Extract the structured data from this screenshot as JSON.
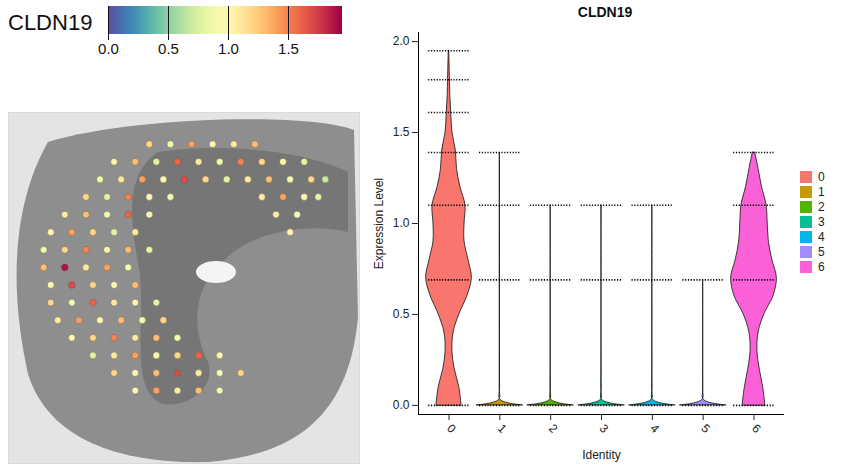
{
  "chart_data": [
    {
      "type": "spatial",
      "title": "CLDN19",
      "xlim": [
        0,
        100
      ],
      "ylim": [
        0,
        100
      ],
      "tick_labels": false,
      "colorbar": {
        "range": [
          0,
          1.95
        ],
        "ticks": [
          {
            "value": 0,
            "label": "0.0"
          },
          0.5,
          {
            "value": 1,
            "label": "1.0"
          },
          1.5
        ]
      },
      "spots": [
        [
          40,
          9,
          1.2
        ],
        [
          46,
          9,
          0.9
        ],
        [
          52,
          9,
          1.4
        ],
        [
          58,
          9,
          1.0
        ],
        [
          64,
          9,
          1.1
        ],
        [
          70,
          9,
          1.3
        ],
        [
          30,
          14,
          1.0
        ],
        [
          36,
          14,
          1.3
        ],
        [
          42,
          14,
          0.8
        ],
        [
          48,
          14,
          1.6
        ],
        [
          54,
          14,
          1.1
        ],
        [
          60,
          14,
          0.9
        ],
        [
          66,
          14,
          1.5
        ],
        [
          72,
          14,
          1.2
        ],
        [
          78,
          14,
          1.0
        ],
        [
          84,
          14,
          0.8
        ],
        [
          26,
          19,
          0.9
        ],
        [
          32,
          19,
          1.1
        ],
        [
          38,
          19,
          1.4
        ],
        [
          44,
          19,
          1.0
        ],
        [
          50,
          19,
          1.7
        ],
        [
          56,
          19,
          1.2
        ],
        [
          62,
          19,
          0.8
        ],
        [
          68,
          19,
          1.1
        ],
        [
          74,
          19,
          1.3
        ],
        [
          80,
          19,
          0.9
        ],
        [
          86,
          19,
          1.2
        ],
        [
          90,
          19,
          0.7
        ],
        [
          22,
          24,
          1.2
        ],
        [
          28,
          24,
          0.8
        ],
        [
          34,
          24,
          1.5
        ],
        [
          40,
          24,
          1.0
        ],
        [
          46,
          24,
          0.9
        ],
        [
          72,
          24,
          1.1
        ],
        [
          78,
          24,
          1.4
        ],
        [
          84,
          24,
          1.0
        ],
        [
          88,
          24,
          0.8
        ],
        [
          16,
          29,
          1.1
        ],
        [
          22,
          29,
          1.3
        ],
        [
          28,
          29,
          0.9
        ],
        [
          34,
          29,
          1.6
        ],
        [
          40,
          29,
          1.0
        ],
        [
          76,
          29,
          1.1
        ],
        [
          82,
          29,
          0.9
        ],
        [
          12,
          34,
          1.0
        ],
        [
          18,
          34,
          1.4
        ],
        [
          24,
          34,
          1.2
        ],
        [
          30,
          34,
          0.8
        ],
        [
          36,
          34,
          1.1
        ],
        [
          80,
          34,
          1.0
        ],
        [
          10,
          39,
          0.9
        ],
        [
          16,
          39,
          1.2
        ],
        [
          22,
          39,
          1.5
        ],
        [
          28,
          39,
          1.0
        ],
        [
          34,
          39,
          1.3
        ],
        [
          40,
          39,
          0.8
        ],
        [
          10,
          44,
          1.3
        ],
        [
          16,
          44,
          1.9
        ],
        [
          22,
          44,
          1.1
        ],
        [
          28,
          44,
          1.4
        ],
        [
          34,
          44,
          0.9
        ],
        [
          12,
          49,
          1.0
        ],
        [
          18,
          49,
          1.7
        ],
        [
          24,
          49,
          1.2
        ],
        [
          30,
          49,
          1.0
        ],
        [
          36,
          49,
          1.3
        ],
        [
          12,
          54,
          1.2
        ],
        [
          18,
          54,
          0.9
        ],
        [
          24,
          54,
          1.6
        ],
        [
          30,
          54,
          1.1
        ],
        [
          36,
          54,
          1.0
        ],
        [
          42,
          54,
          0.8
        ],
        [
          14,
          59,
          1.1
        ],
        [
          20,
          59,
          1.4
        ],
        [
          26,
          59,
          1.0
        ],
        [
          32,
          59,
          1.3
        ],
        [
          38,
          59,
          0.9
        ],
        [
          44,
          59,
          1.2
        ],
        [
          18,
          64,
          1.0
        ],
        [
          24,
          64,
          1.2
        ],
        [
          30,
          64,
          1.5
        ],
        [
          36,
          64,
          1.1
        ],
        [
          42,
          64,
          1.3
        ],
        [
          48,
          64,
          0.9
        ],
        [
          24,
          69,
          0.8
        ],
        [
          30,
          69,
          1.1
        ],
        [
          36,
          69,
          1.4
        ],
        [
          42,
          69,
          1.0
        ],
        [
          48,
          69,
          1.2
        ],
        [
          54,
          69,
          1.6
        ],
        [
          60,
          69,
          1.0
        ],
        [
          30,
          74,
          1.2
        ],
        [
          36,
          74,
          1.0
        ],
        [
          42,
          74,
          1.3
        ],
        [
          48,
          74,
          1.7
        ],
        [
          54,
          74,
          1.1
        ],
        [
          60,
          74,
          0.9
        ],
        [
          66,
          74,
          1.2
        ],
        [
          36,
          79,
          1.0
        ],
        [
          42,
          79,
          1.4
        ],
        [
          48,
          79,
          1.1
        ],
        [
          54,
          79,
          1.3
        ],
        [
          60,
          79,
          0.9
        ]
      ]
    },
    {
      "type": "violin",
      "title": "CLDN19",
      "x_label": "Identity",
      "y_label": "Expression Level",
      "categories": [
        "0",
        "1",
        "2",
        "3",
        "4",
        "5",
        "6"
      ],
      "ylim": [
        -0.05,
        2.05
      ],
      "yticks": [
        {
          "value": 0,
          "label": "0.0"
        },
        0.5,
        {
          "value": 1,
          "label": "1.0"
        },
        1.5,
        {
          "value": 2,
          "label": "2.0"
        }
      ],
      "legend": "right",
      "series": [
        {
          "name": "0",
          "color": "#F8766D",
          "density_y": [
            0,
            0.1,
            0.2,
            0.3,
            0.4,
            0.5,
            0.6,
            0.7,
            0.8,
            0.9,
            1.0,
            1.1,
            1.2,
            1.3,
            1.4,
            1.5,
            1.6,
            1.7,
            1.8,
            1.95
          ],
          "density": [
            0.55,
            0.45,
            0.25,
            0.15,
            0.2,
            0.45,
            0.8,
            1.0,
            0.85,
            0.68,
            0.68,
            0.72,
            0.5,
            0.35,
            0.3,
            0.15,
            0.1,
            0.06,
            0.04,
            0.01
          ],
          "levels": [
            0,
            0.69,
            1.1,
            1.39,
            1.61,
            1.79,
            1.95
          ]
        },
        {
          "name": "1",
          "color": "#C49A00",
          "density_y": [
            0,
            0.03,
            0.1,
            1.39
          ],
          "density": [
            1,
            0.03,
            0.01,
            0.005
          ],
          "levels": [
            0,
            0.69,
            1.1,
            1.39
          ]
        },
        {
          "name": "2",
          "color": "#53B400",
          "density_y": [
            0,
            0.03,
            0.1,
            1.1
          ],
          "density": [
            1,
            0.03,
            0.01,
            0.005
          ],
          "levels": [
            0,
            0.69,
            1.1
          ]
        },
        {
          "name": "3",
          "color": "#00C094",
          "density_y": [
            0,
            0.03,
            0.1,
            1.1
          ],
          "density": [
            1,
            0.03,
            0.01,
            0.005
          ],
          "levels": [
            0,
            0.69,
            1.1
          ]
        },
        {
          "name": "4",
          "color": "#00B6EB",
          "density_y": [
            0,
            0.03,
            0.1,
            1.1
          ],
          "density": [
            1,
            0.03,
            0.01,
            0.005
          ],
          "levels": [
            0,
            0.69,
            1.1
          ]
        },
        {
          "name": "5",
          "color": "#A58AFF",
          "density_y": [
            0,
            0.03,
            0.1,
            0.69
          ],
          "density": [
            1,
            0.03,
            0.01,
            0.005
          ],
          "levels": [
            0,
            0.69
          ]
        },
        {
          "name": "6",
          "color": "#FB61D7",
          "density_y": [
            0,
            0.1,
            0.2,
            0.3,
            0.4,
            0.5,
            0.6,
            0.7,
            0.8,
            0.9,
            1.0,
            1.1,
            1.2,
            1.3,
            1.39
          ],
          "density": [
            0.5,
            0.4,
            0.25,
            0.15,
            0.2,
            0.45,
            0.85,
            1.0,
            0.8,
            0.65,
            0.6,
            0.55,
            0.35,
            0.2,
            0.05
          ],
          "levels": [
            0,
            0.69,
            1.1,
            1.39
          ]
        }
      ]
    }
  ]
}
